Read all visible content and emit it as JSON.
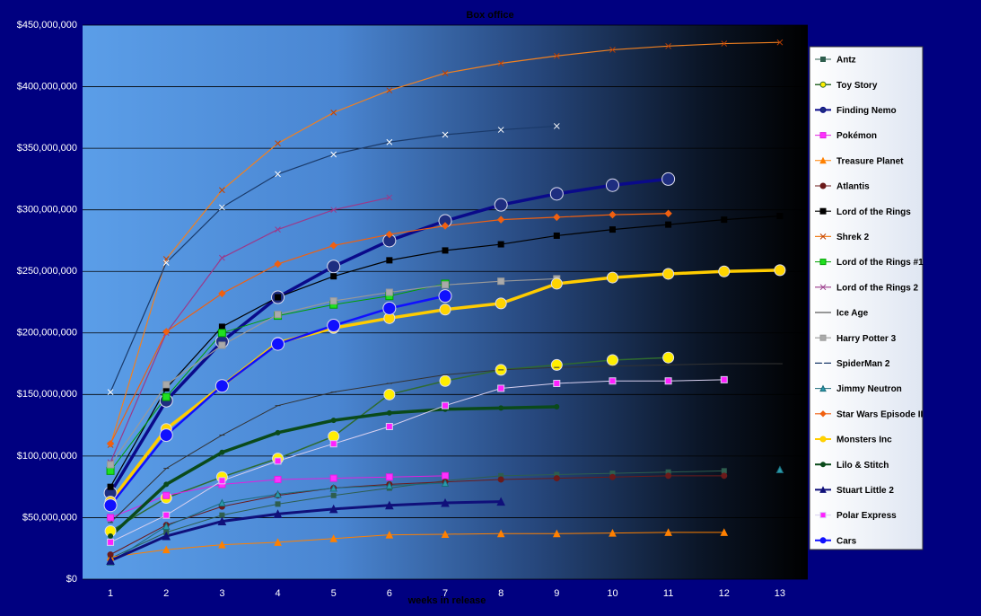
{
  "chart_data": {
    "type": "line",
    "title": "Box office",
    "x_label": "weeks in release",
    "categories": [
      1,
      2,
      3,
      4,
      5,
      6,
      7,
      8,
      9,
      10,
      11,
      12,
      13
    ],
    "ylim": [
      0,
      450000000
    ],
    "yticks": [
      {
        "value": 0,
        "label": "$0"
      },
      {
        "value": 50000000,
        "label": "$50,000,000"
      },
      {
        "value": 100000000,
        "label": "$100,000,000"
      },
      {
        "value": 150000000,
        "label": "$150,000,000"
      },
      {
        "value": 200000000,
        "label": "$200,000,000"
      },
      {
        "value": 250000000,
        "label": "$250,000,000"
      },
      {
        "value": 300000000,
        "label": "$300,000,000"
      },
      {
        "value": 350000000,
        "label": "$350,000,000"
      },
      {
        "value": 400000000,
        "label": "$400,000,000"
      },
      {
        "value": 450000000,
        "label": "$450,000,000"
      }
    ],
    "grid": true,
    "legend": "right",
    "series": [
      {
        "name": "Antz",
        "color": "#2e5e4e",
        "marker": "square",
        "marker_fill": "#2e5e4e",
        "marker_size": 2.5,
        "line_width": 1,
        "values": [
          17000000,
          38000000,
          52000000,
          61000000,
          68000000,
          74000000,
          80000000,
          84000000,
          85000000,
          86000000,
          87000000,
          88000000,
          null
        ]
      },
      {
        "name": "Toy Story",
        "color": "#2f6b2f",
        "marker": "circle",
        "marker_fill": "#ffee00",
        "marker_size": 6,
        "line_width": 1.5,
        "values": [
          39000000,
          66000000,
          83000000,
          98000000,
          116000000,
          150000000,
          161000000,
          170000000,
          174000000,
          178000000,
          180000000,
          null,
          null
        ]
      },
      {
        "name": "Finding Nemo",
        "color": "#0a0a8a",
        "marker": "circle",
        "marker_fill": "#1e2e80",
        "marker_size": 7,
        "line_width": 3.5,
        "values": [
          70000000,
          145000000,
          193000000,
          229000000,
          254000000,
          275000000,
          291000000,
          304000000,
          313000000,
          320000000,
          325000000,
          null,
          null
        ]
      },
      {
        "name": "Pokémon",
        "color": "#e020e0",
        "marker": "square",
        "marker_fill": "#ff30ff",
        "marker_size": 3.5,
        "line_width": 1,
        "values": [
          50000000,
          68000000,
          77000000,
          81000000,
          82000000,
          83000000,
          84000000,
          null,
          null,
          null,
          null,
          null,
          null
        ]
      },
      {
        "name": "Treasure Planet",
        "color": "#ff8000",
        "marker": "triangle",
        "marker_fill": "#ff8000",
        "marker_size": 3.5,
        "line_width": 1,
        "values": [
          18000000,
          24000000,
          28000000,
          30000000,
          33000000,
          36000000,
          36500000,
          37000000,
          37000000,
          37500000,
          38000000,
          38000000,
          null
        ]
      },
      {
        "name": "Atlantis",
        "color": "#6b1a1a",
        "marker": "circle",
        "marker_fill": "#6b1a1a",
        "marker_size": 3,
        "line_width": 1,
        "values": [
          20000000,
          44000000,
          59000000,
          68000000,
          74000000,
          77000000,
          79000000,
          81000000,
          82000000,
          83000000,
          84000000,
          84000000,
          null
        ]
      },
      {
        "name": "Lord of the Rings",
        "color": "#000000",
        "marker": "square",
        "marker_fill": "#000000",
        "marker_size": 3,
        "line_width": 1.2,
        "values": [
          75000000,
          155000000,
          205000000,
          229000000,
          246000000,
          259000000,
          267000000,
          272000000,
          279000000,
          284000000,
          288000000,
          292000000,
          295000000
        ]
      },
      {
        "name": "Shrek 2",
        "color": "#f08020",
        "marker": "x",
        "marker_fill": "#c04000",
        "marker_size": 3,
        "line_width": 1.2,
        "values": [
          109000000,
          260000000,
          316000000,
          354000000,
          379000000,
          397000000,
          411000000,
          419000000,
          425000000,
          430000000,
          433000000,
          435000000,
          436000000
        ]
      },
      {
        "name": "Lord of the Rings #1",
        "color": "#00a000",
        "marker": "square",
        "marker_fill": "#20e020",
        "marker_size": 4,
        "line_width": 1,
        "values": [
          88000000,
          148000000,
          200000000,
          214000000,
          223000000,
          230000000,
          240000000,
          null,
          null,
          null,
          null,
          null,
          null
        ]
      },
      {
        "name": "Lord of the Rings 2",
        "color": "#9a3a8a",
        "marker": "x",
        "marker_fill": "#9a3a8a",
        "marker_size": 3,
        "line_width": 1.2,
        "values": [
          95000000,
          200000000,
          261000000,
          284000000,
          300000000,
          310000000,
          null,
          null,
          null,
          null,
          null,
          null,
          null
        ]
      },
      {
        "name": "Ice Age",
        "color": "#333333",
        "marker": "dash",
        "marker_fill": "#333333",
        "marker_size": 3,
        "line_width": 1,
        "values": [
          46000000,
          90000000,
          117000000,
          141000000,
          152000000,
          159000000,
          166000000,
          170000000,
          172000000,
          173000000,
          174000000,
          175000000,
          175000000
        ]
      },
      {
        "name": "Harry Potter 3",
        "color": "#999999",
        "marker": "square",
        "marker_fill": "#aaaaaa",
        "marker_size": 3.5,
        "line_width": 1.2,
        "values": [
          93000000,
          158000000,
          190000000,
          215000000,
          226000000,
          233000000,
          239000000,
          242000000,
          244000000,
          null,
          null,
          null,
          null
        ]
      },
      {
        "name": "SpiderMan 2",
        "color": "#1a3a6a",
        "marker": "x",
        "marker_fill": "#ffffff",
        "marker_size": 3,
        "line_width": 1.2,
        "values": [
          152000000,
          257000000,
          302000000,
          329000000,
          345000000,
          355000000,
          361000000,
          365000000,
          368000000,
          null,
          null,
          null,
          null
        ]
      },
      {
        "name": "Jimmy Neutron",
        "color": "#1a6a7a",
        "marker": "triangle",
        "marker_fill": "#2a9aaa",
        "marker_size": 3.5,
        "line_width": 1,
        "values": [
          14000000,
          43000000,
          62000000,
          69000000,
          74000000,
          76000000,
          78000000,
          null,
          null,
          null,
          null,
          null,
          89000000
        ]
      },
      {
        "name": "Star Wars Episode II",
        "color": "#f06010",
        "marker": "diamond",
        "marker_fill": "#f06010",
        "marker_size": 3.5,
        "line_width": 1.2,
        "values": [
          110000000,
          201000000,
          232000000,
          256000000,
          271000000,
          280000000,
          287000000,
          292000000,
          294000000,
          296000000,
          297000000,
          null,
          null
        ]
      },
      {
        "name": "Monsters Inc",
        "color": "#ffcc00",
        "marker": "circle",
        "marker_fill": "#ffd400",
        "marker_size": 6,
        "line_width": 3.5,
        "values": [
          63000000,
          122000000,
          157000000,
          192000000,
          204000000,
          212000000,
          219000000,
          224000000,
          240000000,
          245000000,
          248000000,
          250000000,
          251000000
        ]
      },
      {
        "name": "Lilo & Stitch",
        "color": "#0a4a1a",
        "marker": "circle",
        "marker_fill": "#0a4a1a",
        "marker_size": 2.5,
        "line_width": 3.5,
        "values": [
          35000000,
          77000000,
          103000000,
          119000000,
          129000000,
          135000000,
          138000000,
          139000000,
          140000000,
          null,
          null,
          null,
          null
        ]
      },
      {
        "name": "Stuart Little 2",
        "color": "#10107a",
        "marker": "triangle",
        "marker_fill": "#10107a",
        "marker_size": 4,
        "line_width": 3,
        "values": [
          15000000,
          35000000,
          47000000,
          53000000,
          57000000,
          60000000,
          62000000,
          63000000,
          null,
          null,
          null,
          null,
          null
        ]
      },
      {
        "name": "Polar Express",
        "color": "#d8d0f0",
        "marker": "square",
        "marker_fill": "#ff20ff",
        "marker_size": 3.5,
        "line_width": 1,
        "values": [
          30000000,
          52000000,
          80000000,
          96000000,
          110000000,
          124000000,
          141000000,
          155000000,
          159000000,
          161000000,
          161000000,
          162000000,
          null
        ]
      },
      {
        "name": "Cars",
        "color": "#1010ff",
        "marker": "circle",
        "marker_fill": "#1010ff",
        "marker_size": 7,
        "line_width": 2.5,
        "values": [
          60000000,
          117000000,
          157000000,
          191000000,
          206000000,
          220000000,
          230000000,
          null,
          null,
          null,
          null,
          null,
          null
        ]
      }
    ]
  }
}
